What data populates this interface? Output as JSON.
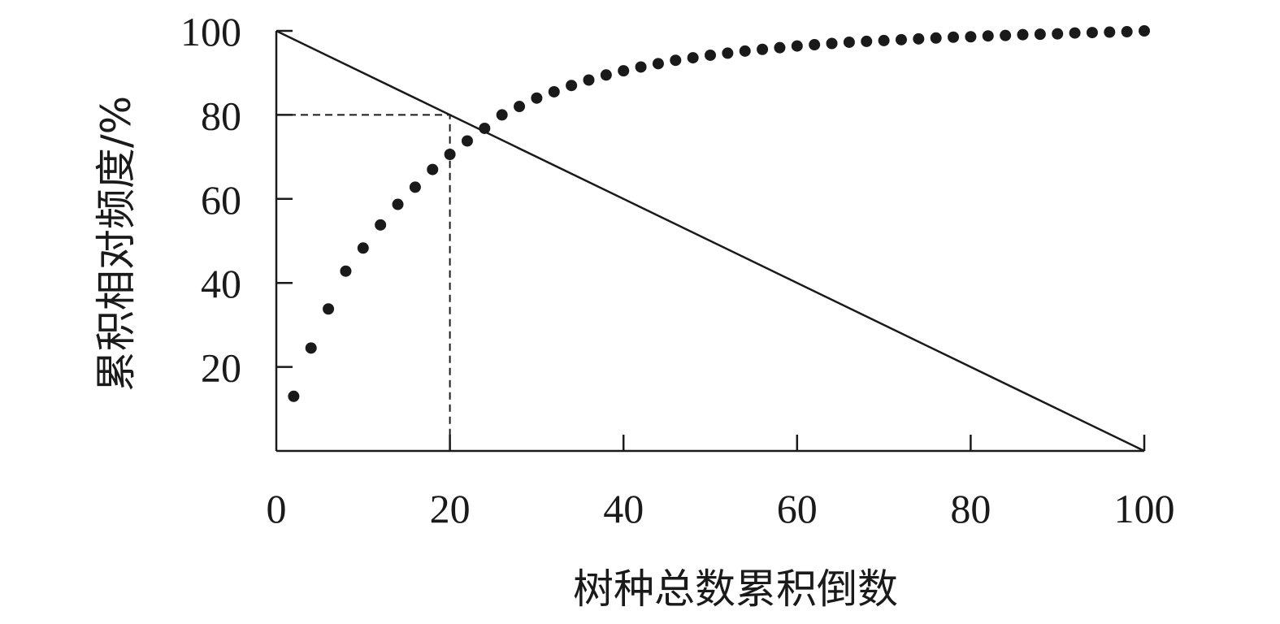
{
  "chart_data": {
    "type": "scatter",
    "xlabel": "树种总数累积倒数",
    "ylabel": "累积相对频度/%",
    "xlim": [
      0,
      100
    ],
    "ylim": [
      0,
      100
    ],
    "x_ticks": [
      0,
      20,
      40,
      60,
      80,
      100
    ],
    "y_ticks": [
      20,
      40,
      60,
      80,
      100
    ],
    "grid": false,
    "legend": "none",
    "colors": {
      "ink": "#1a1a1a"
    },
    "series": [
      {
        "type": "scatter",
        "points": [
          [
            2,
            13
          ],
          [
            4,
            24.5
          ],
          [
            6,
            33.8
          ],
          [
            8,
            42.8
          ],
          [
            10,
            48.3
          ],
          [
            12,
            53.8
          ],
          [
            14,
            58.7
          ],
          [
            16,
            62.8
          ],
          [
            18,
            67
          ],
          [
            20,
            70.6
          ],
          [
            22,
            73.8
          ],
          [
            24,
            76.8
          ],
          [
            26,
            80
          ],
          [
            28,
            82
          ],
          [
            30,
            84
          ],
          [
            32,
            85.5
          ],
          [
            34,
            87
          ],
          [
            36,
            88.3
          ],
          [
            38,
            89.5
          ],
          [
            40,
            90.5
          ],
          [
            42,
            91.4
          ],
          [
            44,
            92.2
          ],
          [
            46,
            93
          ],
          [
            48,
            93.6
          ],
          [
            50,
            94.2
          ],
          [
            52,
            94.7
          ],
          [
            54,
            95.2
          ],
          [
            56,
            95.6
          ],
          [
            58,
            96
          ],
          [
            60,
            96.4
          ],
          [
            62,
            96.7
          ],
          [
            64,
            97
          ],
          [
            66,
            97.3
          ],
          [
            68,
            97.5
          ],
          [
            70,
            97.7
          ],
          [
            72,
            97.9
          ],
          [
            74,
            98.1
          ],
          [
            76,
            98.3
          ],
          [
            78,
            98.5
          ],
          [
            80,
            98.6
          ],
          [
            82,
            98.8
          ],
          [
            84,
            98.9
          ],
          [
            86,
            99.1
          ],
          [
            88,
            99.2
          ],
          [
            90,
            99.3
          ],
          [
            92,
            99.5
          ],
          [
            94,
            99.6
          ],
          [
            96,
            99.7
          ],
          [
            98,
            99.8
          ],
          [
            100,
            100
          ]
        ]
      },
      {
        "type": "line",
        "points": [
          [
            0,
            100
          ],
          [
            100,
            0
          ]
        ]
      },
      {
        "type": "line",
        "style": "dashed",
        "points": [
          [
            0,
            80
          ],
          [
            20,
            80
          ],
          [
            20,
            0
          ]
        ]
      }
    ]
  }
}
